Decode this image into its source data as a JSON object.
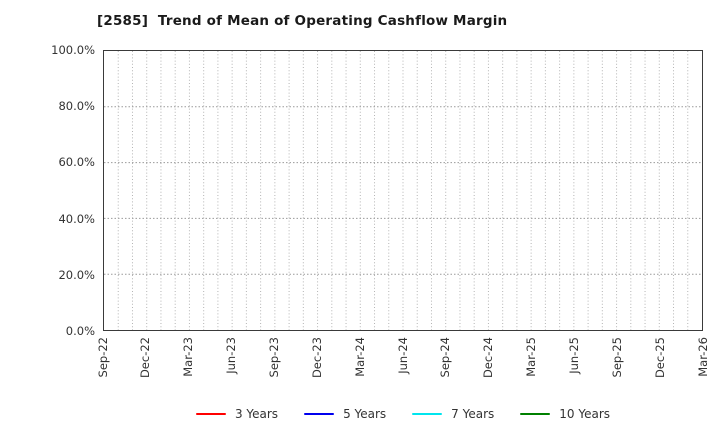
{
  "chart_data": {
    "type": "line",
    "title": "[2585]  Trend of Mean of Operating Cashflow Margin",
    "ticker": "2585",
    "xlabel": "",
    "ylabel": "",
    "ylim": [
      0,
      100
    ],
    "y_unit": "%",
    "y_tick_labels": [
      "100.0%",
      "80.0%",
      "60.0%",
      "40.0%",
      "20.0%",
      "0.0%"
    ],
    "x_tick_labels": [
      "Sep-22",
      "Dec-22",
      "Mar-23",
      "Jun-23",
      "Sep-23",
      "Dec-23",
      "Mar-24",
      "Jun-24",
      "Sep-24",
      "Dec-24",
      "Mar-25",
      "Jun-25",
      "Sep-25",
      "Dec-25",
      "Mar-26"
    ],
    "months_per_major_tick": 3,
    "grid": "on, dotted gray; vertical lines monthly, horizontal lines every 20%",
    "legend_position": "bottom-center",
    "series": [
      {
        "name": "3 Years",
        "color": "#ff0000",
        "values": []
      },
      {
        "name": "5 Years",
        "color": "#0000ee",
        "values": []
      },
      {
        "name": "7 Years",
        "color": "#00e5ee",
        "values": []
      },
      {
        "name": "10 Years",
        "color": "#008000",
        "values": []
      }
    ],
    "note": "Empty axes: legend lists four series but no data lines are plotted"
  },
  "layout_colors": {
    "axis_border": "#3a3a3a",
    "grid_vertical": "#b4b4b4",
    "grid_horizontal": "#9a9a9a",
    "tick_text": "#333333",
    "title_text": "#1a1a1a"
  }
}
